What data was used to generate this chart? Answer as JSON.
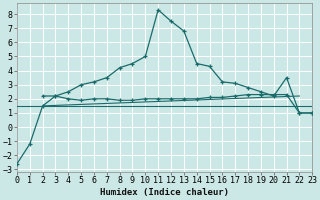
{
  "xlabel": "Humidex (Indice chaleur)",
  "background_color": "#cce8e6",
  "line_color": "#1a6b6b",
  "grid_color": "#ffffff",
  "xlim": [
    0,
    23
  ],
  "ylim": [
    -3.2,
    8.8
  ],
  "xticks": [
    0,
    1,
    2,
    3,
    4,
    5,
    6,
    7,
    8,
    9,
    10,
    11,
    12,
    13,
    14,
    15,
    16,
    17,
    18,
    19,
    20,
    21,
    22,
    23
  ],
  "yticks": [
    -3,
    -2,
    -1,
    0,
    1,
    2,
    3,
    4,
    5,
    6,
    7,
    8
  ],
  "line1_x": [
    0,
    1,
    2,
    3,
    4,
    5,
    6,
    7,
    8,
    9,
    10,
    11,
    12,
    13,
    14,
    15,
    16,
    17,
    18,
    19,
    20,
    21,
    22,
    23
  ],
  "line1_y": [
    -2.6,
    -1.2,
    1.5,
    2.2,
    2.5,
    3.0,
    3.2,
    3.5,
    4.2,
    4.5,
    5.0,
    8.3,
    7.5,
    6.8,
    4.5,
    4.3,
    3.2,
    3.1,
    2.8,
    2.5,
    2.2,
    3.5,
    1.0,
    1.0
  ],
  "line2_x": [
    2,
    3,
    4,
    5,
    6,
    7,
    8,
    9,
    10,
    11,
    12,
    13,
    14,
    15,
    16,
    17,
    18,
    19,
    20,
    21,
    22,
    23
  ],
  "line2_y": [
    2.2,
    2.2,
    2.0,
    1.9,
    2.0,
    2.0,
    1.9,
    1.9,
    2.0,
    2.0,
    2.0,
    2.0,
    2.0,
    2.1,
    2.1,
    2.2,
    2.3,
    2.3,
    2.3,
    2.3,
    1.0,
    1.0
  ],
  "line3_x": [
    0,
    23
  ],
  "line3_y": [
    1.5,
    1.5
  ],
  "line4_x": [
    2,
    22
  ],
  "line4_y": [
    1.5,
    2.2
  ],
  "xlabel_fontsize": 6.5,
  "tick_fontsize": 6
}
